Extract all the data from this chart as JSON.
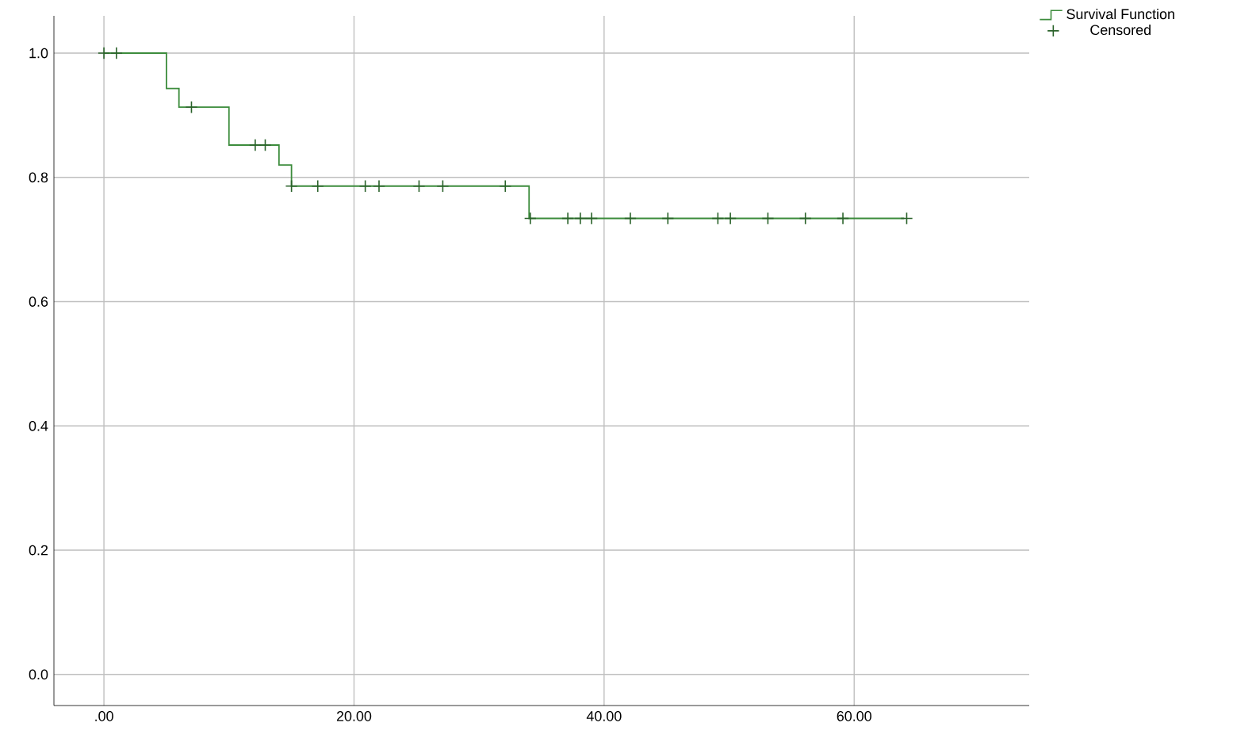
{
  "chart_data": {
    "type": "step",
    "legend": "top right outside",
    "grid": true,
    "line_style": "solid",
    "xlim": [
      -4,
      74
    ],
    "ylim": [
      -0.05,
      1.06
    ],
    "xticks": [
      {
        "value": 0,
        "label": ".00"
      },
      {
        "value": 20,
        "label": "20.00"
      },
      {
        "value": 40,
        "label": "40.00"
      },
      {
        "value": 60,
        "label": "60.00"
      }
    ],
    "yticks": [
      {
        "value": 0,
        "label": "0.0"
      },
      {
        "value": 0.2,
        "label": "0.2"
      },
      {
        "value": 0.4,
        "label": "0.4"
      },
      {
        "value": 0.6,
        "label": "0.6"
      },
      {
        "value": 0.8,
        "label": "0.8"
      },
      {
        "value": 1,
        "label": "1.0"
      }
    ],
    "series": [
      {
        "name": "Survival Function",
        "marker": "none",
        "color": "#3c8c3c",
        "x": [
          0,
          5,
          6,
          10,
          14,
          15,
          34,
          64
        ],
        "values": [
          1,
          0.943,
          0.913,
          0.852,
          0.82,
          0.786,
          0.734,
          0.734
        ]
      },
      {
        "name": "Censored",
        "type": "scatter",
        "marker": "cross",
        "color": "#2a622a",
        "x": [
          0,
          1,
          7,
          12.1,
          12.9,
          15,
          17.1,
          20.9,
          22,
          25.2,
          27.1,
          32.1,
          34.1,
          37.1,
          38.1,
          39,
          42.1,
          45.1,
          49.1,
          50.1,
          53.1,
          56.1,
          59.1,
          64.2
        ],
        "values": [
          1,
          1,
          0.913,
          0.852,
          0.852,
          0.786,
          0.786,
          0.786,
          0.786,
          0.786,
          0.786,
          0.786,
          0.734,
          0.734,
          0.734,
          0.734,
          0.734,
          0.734,
          0.734,
          0.734,
          0.734,
          0.734,
          0.734,
          0.734
        ]
      }
    ]
  }
}
